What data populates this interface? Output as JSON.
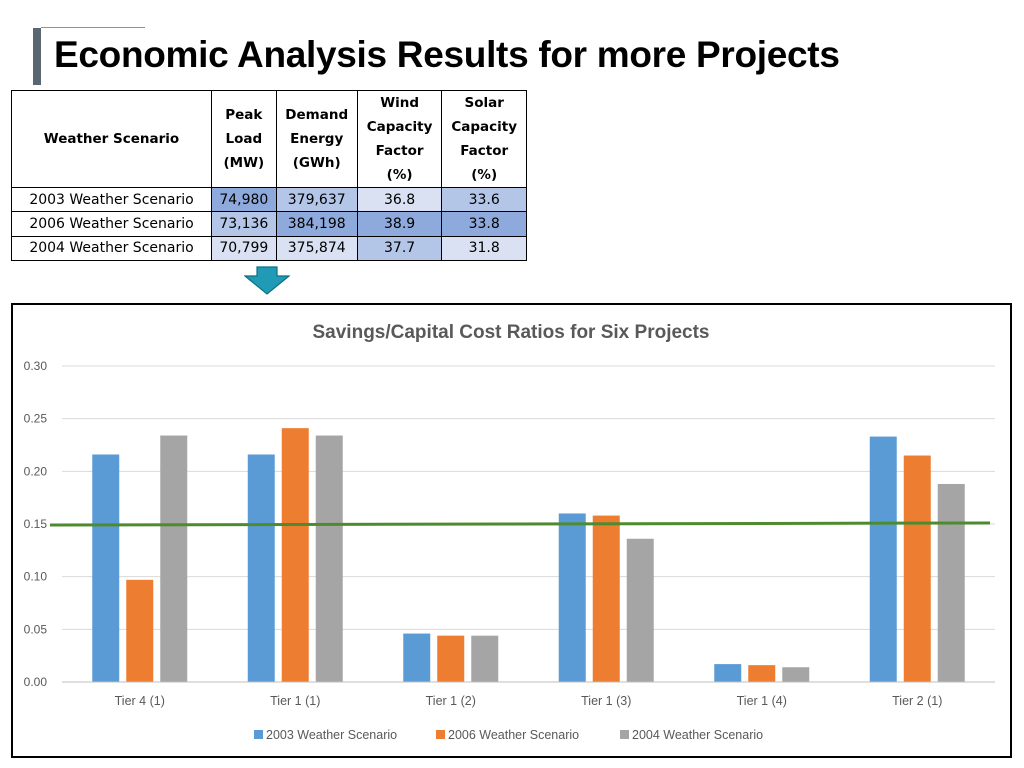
{
  "page": {
    "title": "Economic Analysis Results for more Projects"
  },
  "table": {
    "headers": [
      "Weather Scenario",
      [
        "Peak",
        "Load",
        "(MW)"
      ],
      [
        "Demand",
        "Energy",
        "(GWh)"
      ],
      [
        "Wind",
        "Capacity",
        "Factor",
        "(%)"
      ],
      [
        "Solar",
        "Capacity",
        "Factor",
        "(%)"
      ]
    ],
    "rows": [
      {
        "scenario": "2003 Weather Scenario",
        "peak_load": "74,980",
        "demand_energy": "379,637",
        "wind": "36.8",
        "solar": "33.6"
      },
      {
        "scenario": "2006 Weather Scenario",
        "peak_load": "73,136",
        "demand_energy": "384,198",
        "wind": "38.9",
        "solar": "33.8"
      },
      {
        "scenario": "2004 Weather Scenario",
        "peak_load": "70,799",
        "demand_energy": "375,874",
        "wind": "37.7",
        "solar": "31.8"
      }
    ],
    "shading": [
      [
        "dark",
        "mid",
        "light",
        "mid"
      ],
      [
        "mid",
        "dark",
        "dark",
        "dark"
      ],
      [
        "light",
        "light",
        "mid",
        "light"
      ]
    ]
  },
  "colors": {
    "series": [
      "#5b9bd5",
      "#ed7d31",
      "#a5a5a5"
    ],
    "threshold": "#4e8a2e",
    "arrow": "#1f9bb5"
  },
  "chart_data": {
    "type": "bar",
    "title": "Savings/Capital Cost Ratios for Six Projects",
    "categories": [
      "Tier 4 (1)",
      "Tier 1 (1)",
      "Tier 1 (2)",
      "Tier 1 (3)",
      "Tier 1 (4)",
      "Tier 2 (1)"
    ],
    "series": [
      {
        "name": "2003 Weather Scenario",
        "values": [
          0.216,
          0.216,
          0.046,
          0.16,
          0.017,
          0.233
        ]
      },
      {
        "name": "2006 Weather Scenario",
        "values": [
          0.097,
          0.241,
          0.044,
          0.158,
          0.016,
          0.215
        ]
      },
      {
        "name": "2004 Weather Scenario",
        "values": [
          0.234,
          0.234,
          0.044,
          0.136,
          0.014,
          0.188
        ]
      }
    ],
    "ylim": [
      0,
      0.3
    ],
    "yticks": [
      "0.00",
      "0.05",
      "0.10",
      "0.15",
      "0.20",
      "0.25",
      "0.30"
    ],
    "threshold_line": {
      "start": 0.149,
      "end": 0.151
    },
    "grid": true,
    "legend": "bottom",
    "xlabel": "",
    "ylabel": ""
  }
}
